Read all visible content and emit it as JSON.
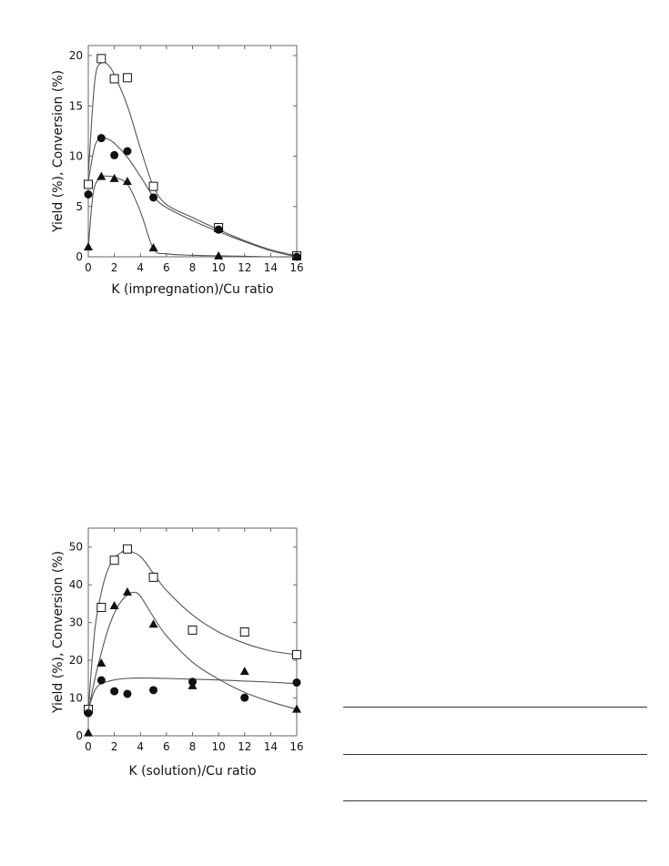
{
  "chart_data": [
    {
      "type": "scatter",
      "xlabel": "K (impregnation)/Cu ratio",
      "ylabel": "Yield (%), Conversion (%)",
      "xlim": [
        0,
        16
      ],
      "ylim": [
        0,
        21
      ],
      "xticks": [
        0,
        2,
        4,
        6,
        8,
        10,
        12,
        14,
        16
      ],
      "yticks": [
        0,
        5,
        10,
        15,
        20
      ],
      "grid": false,
      "series": [
        {
          "marker": "open-square",
          "x": [
            0,
            1,
            2,
            3,
            5,
            10,
            16
          ],
          "y": [
            7.2,
            19.7,
            17.7,
            17.8,
            7.0,
            2.9,
            0.1
          ],
          "curve_x": [
            0,
            0.5,
            1,
            1.5,
            2,
            3,
            4,
            5,
            6,
            8,
            10,
            12,
            14,
            16
          ],
          "curve_y": [
            8.2,
            17.5,
            19.3,
            19.1,
            18.1,
            15.0,
            10.8,
            7.0,
            5.2,
            3.9,
            2.7,
            1.6,
            0.7,
            0.1
          ]
        },
        {
          "marker": "filled-circle",
          "x": [
            0,
            1,
            2,
            3,
            5,
            10,
            16
          ],
          "y": [
            6.2,
            11.8,
            10.1,
            10.5,
            5.9,
            2.7,
            0.0
          ],
          "curve_x": [
            0,
            0.5,
            1,
            1.5,
            2,
            3,
            4,
            5,
            6,
            8,
            10,
            12,
            14,
            16
          ],
          "curve_y": [
            7.5,
            11.0,
            11.8,
            11.7,
            11.3,
            9.9,
            8.0,
            6.0,
            4.9,
            3.6,
            2.5,
            1.5,
            0.6,
            0.0
          ]
        },
        {
          "marker": "filled-triangle",
          "x": [
            0,
            1,
            2,
            3,
            5,
            10,
            16
          ],
          "y": [
            1.0,
            8.0,
            7.8,
            7.5,
            0.9,
            0.1,
            0.0
          ],
          "curve_x": [
            0,
            0.4,
            1,
            1.5,
            2,
            3,
            4,
            5,
            6,
            8,
            10,
            12,
            14,
            16
          ],
          "curve_y": [
            0.9,
            6.5,
            7.9,
            8.0,
            7.9,
            7.2,
            4.5,
            0.8,
            0.3,
            0.15,
            0.1,
            0.05,
            0.0,
            0.0
          ]
        }
      ]
    },
    {
      "type": "scatter",
      "xlabel": "K (solution)/Cu ratio",
      "ylabel": "Yield (%), Conversion (%)",
      "xlim": [
        0,
        16
      ],
      "ylim": [
        0,
        55
      ],
      "xticks": [
        0,
        2,
        4,
        6,
        8,
        10,
        12,
        14,
        16
      ],
      "yticks": [
        0,
        10,
        20,
        30,
        40,
        50
      ],
      "grid": false,
      "series": [
        {
          "marker": "open-square",
          "x": [
            0,
            1,
            2,
            3,
            5,
            8,
            12,
            16
          ],
          "y": [
            7,
            34,
            46.5,
            49.5,
            42,
            28,
            27.5,
            21.5
          ],
          "curve_x": [
            0,
            0.5,
            1,
            1.5,
            2,
            2.5,
            3,
            4,
            5,
            6,
            8,
            10,
            12,
            14,
            16
          ],
          "curve_y": [
            7,
            28,
            38,
            44,
            47,
            48.5,
            49,
            47.5,
            43,
            38.5,
            32,
            27.5,
            24.5,
            22.5,
            21.5
          ]
        },
        {
          "marker": "filled-circle",
          "x": [
            0,
            1,
            2,
            3,
            5,
            8,
            12,
            16
          ],
          "y": [
            6,
            14.7,
            11.8,
            11.1,
            12.1,
            14.3,
            10.1,
            14.1
          ],
          "curve_x": [
            0,
            0.5,
            1,
            2,
            3,
            4,
            6,
            8,
            10,
            12,
            14,
            16
          ],
          "curve_y": [
            7,
            12,
            13.8,
            14.8,
            15.2,
            15.3,
            15.2,
            15.0,
            14.8,
            14.5,
            14.2,
            13.8
          ]
        },
        {
          "marker": "filled-triangle",
          "x": [
            0,
            1,
            2,
            3,
            5,
            8,
            12,
            16
          ],
          "y": [
            0.8,
            19.3,
            34.5,
            38.1,
            29.6,
            13.3,
            17.1,
            7.1
          ],
          "curve_x": [
            0,
            0.5,
            1,
            1.5,
            2,
            2.5,
            3,
            3.5,
            4,
            5,
            6,
            8,
            10,
            12,
            14,
            16
          ],
          "curve_y": [
            6.5,
            15,
            22,
            28,
            32.5,
            35.5,
            37.3,
            38,
            37,
            31.5,
            26.5,
            19.5,
            15,
            11.5,
            9,
            7
          ]
        }
      ]
    }
  ],
  "colors": {
    "ink": "#111111",
    "axis": "#666666",
    "rule": "#333333",
    "background": "#ffffff"
  }
}
